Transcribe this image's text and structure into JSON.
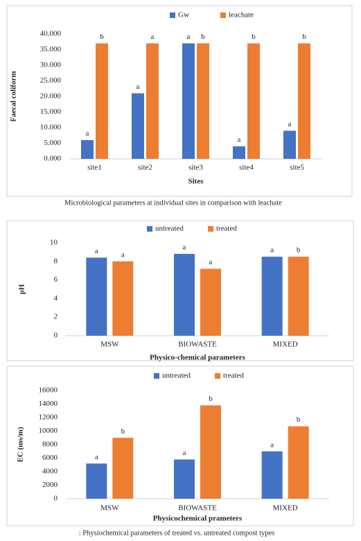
{
  "chart_data": [
    {
      "type": "bar",
      "ylabel": "Faecal coliform",
      "xlabel": "Sites",
      "categories": [
        "site1",
        "site2",
        "site3",
        "site4",
        "site5"
      ],
      "series": [
        {
          "name": "Gw",
          "color": "#4472c4",
          "values": [
            6000,
            21000,
            37000,
            4000,
            9000
          ],
          "labels": [
            "a",
            "a",
            "a",
            "a",
            "a"
          ]
        },
        {
          "name": "leachate",
          "color": "#ed7d31",
          "values": [
            37000,
            37000,
            37000,
            37000,
            37000
          ],
          "labels": [
            "b",
            "a",
            "b",
            "b",
            "b"
          ]
        }
      ],
      "ylim": [
        0,
        40000
      ],
      "yticks": [
        {
          "value": 0,
          "label": "0.000"
        },
        {
          "value": 5000,
          "label": "5.000"
        },
        {
          "value": 10000,
          "label": "10.000"
        },
        {
          "value": 15000,
          "label": "15.000"
        },
        {
          "value": 20000,
          "label": "20.000"
        },
        {
          "value": 25000,
          "label": "25.000"
        },
        {
          "value": 30000,
          "label": "30.000"
        },
        {
          "value": 35000,
          "label": "35.000"
        },
        {
          "value": 40000,
          "label": "40.000"
        }
      ],
      "grid": false,
      "legend": "top"
    },
    {
      "type": "bar",
      "ylabel": "pH",
      "xlabel": "Physico-chemical parameters",
      "categories": [
        "MSW",
        "BIOWASTE",
        "MIXED"
      ],
      "series": [
        {
          "name": "untreated",
          "color": "#4472c4",
          "values": [
            8.4,
            8.8,
            8.5
          ],
          "labels": [
            "a",
            "a",
            "a"
          ]
        },
        {
          "name": "treated",
          "color": "#ed7d31",
          "values": [
            8.0,
            7.2,
            8.5
          ],
          "labels": [
            "a",
            "a",
            "b"
          ]
        }
      ],
      "ylim": [
        0,
        10
      ],
      "yticks": [
        0,
        2,
        4,
        6,
        8,
        10
      ],
      "grid": false,
      "legend": "top"
    },
    {
      "type": "bar",
      "ylabel": "EC (ms/m)",
      "xlabel": "Physicochemical prameters",
      "categories": [
        "MSW",
        "BIOWASTE",
        "MIXED"
      ],
      "series": [
        {
          "name": "untreated",
          "color": "#4472c4",
          "values": [
            5200,
            5800,
            7000
          ],
          "labels": [
            "a",
            "a",
            "a"
          ]
        },
        {
          "name": "treated",
          "color": "#ed7d31",
          "values": [
            9000,
            13800,
            10700
          ],
          "labels": [
            "b",
            "b",
            "b"
          ]
        }
      ],
      "ylim": [
        0,
        16000
      ],
      "yticks": [
        0,
        2000,
        4000,
        6000,
        8000,
        10000,
        12000,
        14000,
        16000
      ],
      "grid": false,
      "legend": "top"
    }
  ],
  "captions": [
    "Microbiological parameters at individual sites in comparison with leachate",
    ": Physiochemical parameters of treated vs. untreated compost types"
  ]
}
